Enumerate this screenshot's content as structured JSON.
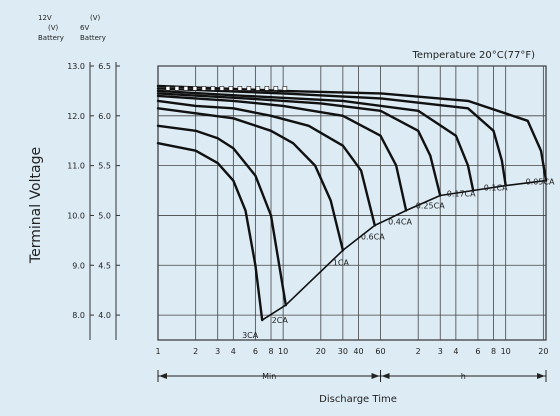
{
  "chart_data": {
    "type": "line",
    "ylabel": "Terminal Voltage",
    "xlabel": "Discharge Time",
    "temperature_note": "Temperature  20°C(77°F)",
    "y12_header": [
      "12V",
      "(V)",
      "Battery"
    ],
    "y6_header": [
      "(V)",
      "6V",
      "Battery"
    ],
    "y12_ticks": [
      "13.0",
      "12.0",
      "11.0",
      "10.0",
      "9.0",
      "8.0"
    ],
    "y6_ticks": [
      "6.5",
      "6.0",
      "5.5",
      "5.0",
      "4.5",
      "4.0"
    ],
    "ylim_12v": [
      7.5,
      13.0
    ],
    "min_ticks": [
      "1",
      "2",
      "3",
      "4",
      "6",
      "8",
      "10",
      "20",
      "30",
      "40",
      "60"
    ],
    "hour_ticks": [
      "2",
      "3",
      "4",
      "6",
      "8",
      "10",
      "20"
    ],
    "unit_min": "Min",
    "unit_h": "h",
    "series": [
      {
        "name": "3CA",
        "x_min": [
          1,
          2,
          3,
          4,
          5,
          6,
          6.8
        ],
        "y": [
          11.45,
          11.3,
          11.05,
          10.7,
          10.1,
          9.0,
          7.9
        ]
      },
      {
        "name": "2CA",
        "x_min": [
          1,
          2,
          3,
          4,
          6,
          8,
          10.5
        ],
        "y": [
          11.8,
          11.7,
          11.55,
          11.35,
          10.8,
          10.0,
          8.2
        ]
      },
      {
        "name": "1CA",
        "x_min": [
          1,
          2,
          4,
          8,
          12,
          18,
          24,
          30
        ],
        "y": [
          12.15,
          12.05,
          11.95,
          11.7,
          11.45,
          11.0,
          10.3,
          9.3
        ]
      },
      {
        "name": "0.6CA",
        "x_min": [
          1,
          2,
          4,
          8,
          16,
          30,
          42,
          54
        ],
        "y": [
          12.3,
          12.2,
          12.15,
          12.0,
          11.8,
          11.4,
          10.9,
          9.8
        ]
      },
      {
        "name": "0.4CA",
        "x_min": [
          1,
          4,
          10,
          30,
          60,
          80,
          96
        ],
        "y": [
          12.4,
          12.3,
          12.2,
          12.0,
          11.6,
          11.0,
          10.1
        ]
      },
      {
        "name": "0.25CA",
        "x_min": [
          1,
          5,
          20,
          60,
          120,
          150,
          180
        ],
        "y": [
          12.45,
          12.35,
          12.25,
          12.1,
          11.7,
          11.2,
          10.4
        ]
      },
      {
        "name": "0.17CA",
        "x_min": [
          1,
          5,
          30,
          120,
          240,
          300,
          330
        ],
        "y": [
          12.5,
          12.4,
          12.3,
          12.1,
          11.6,
          11.0,
          10.5
        ]
      },
      {
        "name": "0.1CA",
        "x_min": [
          1,
          10,
          60,
          300,
          480,
          560,
          600
        ],
        "y": [
          12.55,
          12.45,
          12.35,
          12.15,
          11.7,
          11.1,
          10.6
        ]
      },
      {
        "name": "0.05CA",
        "x_min": [
          1,
          10,
          60,
          300,
          900,
          1150,
          1260
        ],
        "y": [
          12.6,
          12.5,
          12.45,
          12.3,
          11.9,
          11.3,
          10.7
        ]
      }
    ],
    "end_voltage": {
      "x_min": [
        6.8,
        10.5,
        30,
        54,
        96,
        180,
        330,
        600,
        1260
      ],
      "y": [
        7.9,
        8.2,
        9.3,
        9.8,
        10.1,
        10.4,
        10.5,
        10.6,
        10.7
      ]
    },
    "legend": "none",
    "grid": true
  }
}
